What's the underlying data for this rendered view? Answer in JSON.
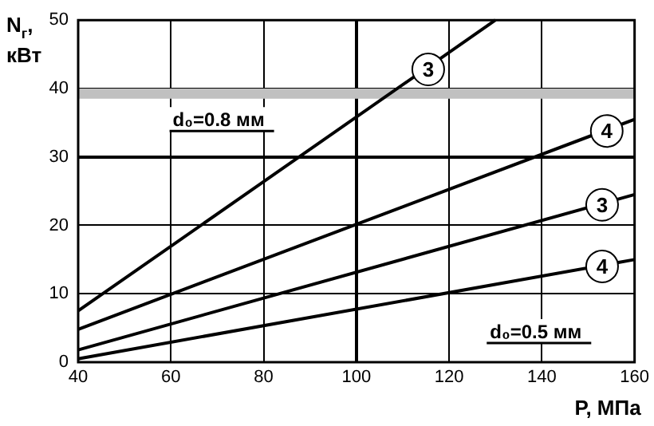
{
  "chart_data": {
    "type": "line",
    "xlabel": "P, МПа",
    "ylabel": "N$_{г}$, кВт",
    "xlim": [
      40,
      160
    ],
    "xticks": [
      40,
      60,
      80,
      100,
      120,
      140,
      160
    ],
    "ylim": [
      0,
      50
    ],
    "yticks": [
      0,
      10,
      20,
      30,
      40,
      50
    ],
    "grid": true,
    "legend": false,
    "marker": "none",
    "line_style": "solid",
    "series": [
      {
        "color": "#000000",
        "x": [
          40,
          130
        ],
        "values": [
          7.5,
          50
        ]
      },
      {
        "color": "#000000",
        "x": [
          40,
          160
        ],
        "values": [
          4.8,
          35.5
        ]
      },
      {
        "color": "#000000",
        "x": [
          40,
          160
        ],
        "values": [
          1.8,
          24.5
        ]
      },
      {
        "color": "#000000",
        "x": [
          40,
          160
        ],
        "values": [
          0.5,
          15
        ]
      }
    ],
    "bands": [
      {
        "axis": "y",
        "from": 38.5,
        "to": 40,
        "color": "#c0c0c0"
      }
    ],
    "annotations": [
      {
        "text": "3",
        "x": 115.5,
        "y": 42.8
      },
      {
        "text": "4",
        "x": 154,
        "y": 33.8
      },
      {
        "text": "3",
        "x": 153,
        "y": 23
      },
      {
        "text": "4",
        "x": 153,
        "y": 14
      },
      "d₀=0.8 мм",
      "d₀=0.5 мм"
    ]
  }
}
